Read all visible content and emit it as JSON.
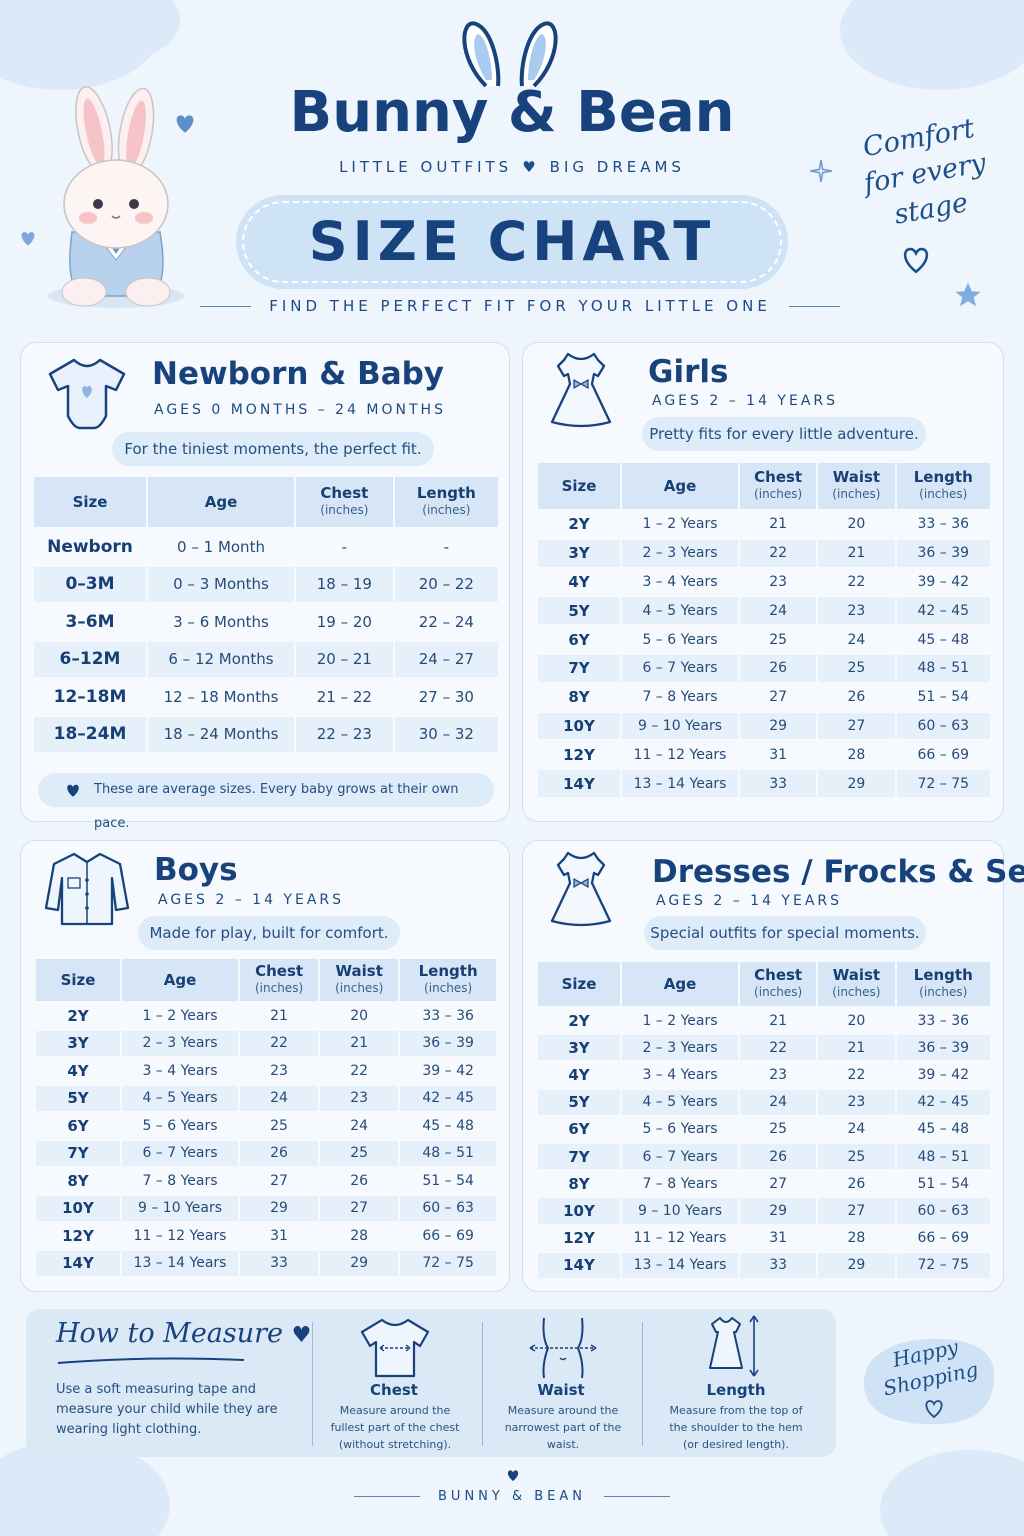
{
  "brand": {
    "name": "Bunny & Bean",
    "tagline_left": "LITTLE OUTFITS",
    "tagline_right": "BIG DREAMS"
  },
  "title": "SIZE CHART",
  "subtitle": "FIND THE PERFECT FIT FOR YOUR LITTLE ONE",
  "side_note": {
    "line1": "Comfort",
    "line2": "for every",
    "line3": "stage"
  },
  "colors": {
    "primary": "#17427c",
    "accent": "#cfe3f6",
    "background": "#eef5fd"
  },
  "newborn": {
    "title": "Newborn & Baby",
    "ages": "AGES 0 MONTHS – 24 MONTHS",
    "note": "For the tiniest moments, the perfect fit.",
    "headers": {
      "size": "Size",
      "age": "Age",
      "chest": "Chest",
      "length": "Length",
      "unit": "(inches)"
    },
    "rows": [
      [
        "Newborn",
        "0 – 1 Month",
        "-",
        "-"
      ],
      [
        "0–3M",
        "0 – 3 Months",
        "18 – 19",
        "20 – 22"
      ],
      [
        "3–6M",
        "3 – 6 Months",
        "19 – 20",
        "22 – 24"
      ],
      [
        "6–12M",
        "6 – 12 Months",
        "20 – 21",
        "24 – 27"
      ],
      [
        "12–18M",
        "12 – 18 Months",
        "21 – 22",
        "27 – 30"
      ],
      [
        "18–24M",
        "18 – 24 Months",
        "22 – 23",
        "30 – 32"
      ]
    ],
    "footnote": "These are average sizes. Every baby grows at their own pace."
  },
  "girls": {
    "title": "Girls",
    "ages": "AGES 2 – 14 YEARS",
    "note": "Pretty fits for every little adventure.",
    "headers": {
      "size": "Size",
      "age": "Age",
      "chest": "Chest",
      "waist": "Waist",
      "length": "Length",
      "unit": "(inches)"
    },
    "rows": [
      [
        "2Y",
        "1 – 2 Years",
        "21",
        "20",
        "33 – 36"
      ],
      [
        "3Y",
        "2 – 3 Years",
        "22",
        "21",
        "36 – 39"
      ],
      [
        "4Y",
        "3 – 4 Years",
        "23",
        "22",
        "39 – 42"
      ],
      [
        "5Y",
        "4 – 5 Years",
        "24",
        "23",
        "42 – 45"
      ],
      [
        "6Y",
        "5 – 6 Years",
        "25",
        "24",
        "45 – 48"
      ],
      [
        "7Y",
        "6 – 7 Years",
        "26",
        "25",
        "48 – 51"
      ],
      [
        "8Y",
        "7 – 8 Years",
        "27",
        "26",
        "51 – 54"
      ],
      [
        "10Y",
        "9 – 10 Years",
        "29",
        "27",
        "60 – 63"
      ],
      [
        "12Y",
        "11 – 12 Years",
        "31",
        "28",
        "66 – 69"
      ],
      [
        "14Y",
        "13 – 14 Years",
        "33",
        "29",
        "72 – 75"
      ]
    ]
  },
  "boys": {
    "title": "Boys",
    "ages": "AGES 2 – 14 YEARS",
    "note": "Made for play, built for comfort.",
    "headers": {
      "size": "Size",
      "age": "Age",
      "chest": "Chest",
      "waist": "Waist",
      "length": "Length",
      "unit": "(inches)"
    },
    "rows": [
      [
        "2Y",
        "1 – 2 Years",
        "21",
        "20",
        "33 – 36"
      ],
      [
        "3Y",
        "2 – 3 Years",
        "22",
        "21",
        "36 – 39"
      ],
      [
        "4Y",
        "3 – 4 Years",
        "23",
        "22",
        "39 – 42"
      ],
      [
        "5Y",
        "4 – 5 Years",
        "24",
        "23",
        "42 – 45"
      ],
      [
        "6Y",
        "5 – 6 Years",
        "25",
        "24",
        "45 – 48"
      ],
      [
        "7Y",
        "6 – 7 Years",
        "26",
        "25",
        "48 – 51"
      ],
      [
        "8Y",
        "7 – 8 Years",
        "27",
        "26",
        "51 – 54"
      ],
      [
        "10Y",
        "9 – 10 Years",
        "29",
        "27",
        "60 – 63"
      ],
      [
        "12Y",
        "11 – 12 Years",
        "31",
        "28",
        "66 – 69"
      ],
      [
        "14Y",
        "13 – 14 Years",
        "33",
        "29",
        "72 – 75"
      ]
    ]
  },
  "dresses": {
    "title": "Dresses / Frocks & Sets",
    "ages": "AGES 2 – 14 YEARS",
    "note": "Special outfits for special moments.",
    "headers": {
      "size": "Size",
      "age": "Age",
      "chest": "Chest",
      "waist": "Waist",
      "length": "Length",
      "unit": "(inches)"
    },
    "rows": [
      [
        "2Y",
        "1 – 2 Years",
        "21",
        "20",
        "33 – 36"
      ],
      [
        "3Y",
        "2 – 3 Years",
        "22",
        "21",
        "36 – 39"
      ],
      [
        "4Y",
        "3 – 4 Years",
        "23",
        "22",
        "39 – 42"
      ],
      [
        "5Y",
        "4 – 5 Years",
        "24",
        "23",
        "42 – 45"
      ],
      [
        "6Y",
        "5 – 6 Years",
        "25",
        "24",
        "45 – 48"
      ],
      [
        "7Y",
        "6 – 7 Years",
        "26",
        "25",
        "48 – 51"
      ],
      [
        "8Y",
        "7 – 8 Years",
        "27",
        "26",
        "51 – 54"
      ],
      [
        "10Y",
        "9 – 10 Years",
        "29",
        "27",
        "60 – 63"
      ],
      [
        "12Y",
        "11 – 12 Years",
        "31",
        "28",
        "66 – 69"
      ],
      [
        "14Y",
        "13 – 14 Years",
        "33",
        "29",
        "72 – 75"
      ]
    ]
  },
  "measure": {
    "title": "How to Measure",
    "intro": "Use a soft measuring tape and measure your child while they are wearing light clothing.",
    "chest": {
      "label": "Chest",
      "desc": "Measure around the fullest part of the chest (without stretching)."
    },
    "waist": {
      "label": "Waist",
      "desc": "Measure around the narrowest part of the waist."
    },
    "length": {
      "label": "Length",
      "desc": "Measure from the top of the shoulder to the hem (or desired length)."
    }
  },
  "happy": {
    "line1": "Happy",
    "line2": "Shopping"
  },
  "footer": "BUNNY & BEAN"
}
